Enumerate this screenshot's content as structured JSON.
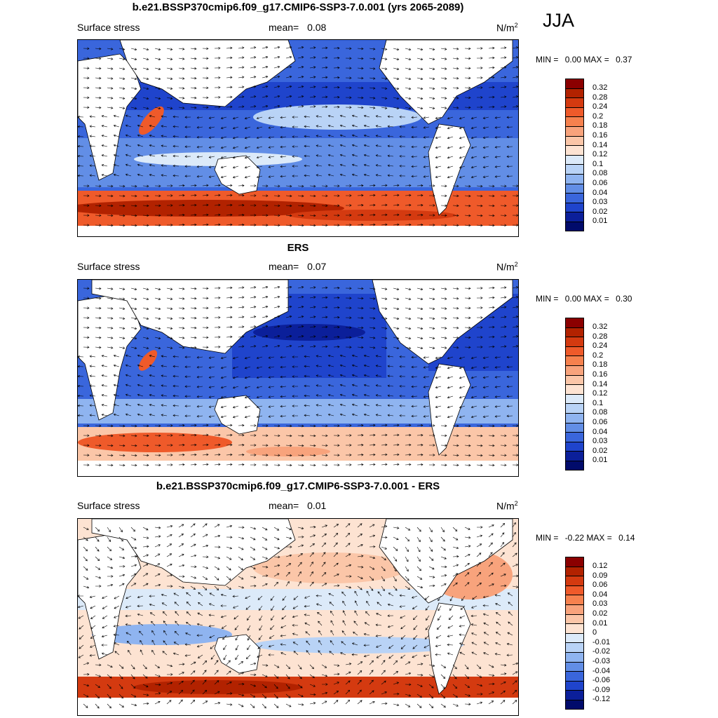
{
  "season_label": "JJA",
  "units": "N/m",
  "units_sup": "2",
  "field_label": "Surface stress",
  "panels": [
    {
      "title": "b.e21.BSSP370cmip6.f09_g17.CMIP6-SSP3-7.0.001 (yrs 2065-2089)",
      "mean_label": "mean=",
      "mean_value": "0.08",
      "min_label": "MIN =",
      "min_value": "0.00",
      "max_label": "MAX =",
      "max_value": "0.37",
      "colorbar_ticks": [
        "0.32",
        "0.28",
        "0.24",
        "0.2",
        "0.18",
        "0.16",
        "0.14",
        "0.12",
        "0.1",
        "0.08",
        "0.06",
        "0.04",
        "0.03",
        "0.02",
        "0.01"
      ],
      "colorbar_colors": [
        "#8b0000",
        "#b22200",
        "#d43a10",
        "#ef5a2a",
        "#f6814e",
        "#f8a37c",
        "#fbc6a8",
        "#fde3d2",
        "#dceaf9",
        "#b9d3f6",
        "#8fb4f0",
        "#628ee6",
        "#3a66dc",
        "#1f44cc",
        "#0b1f9a",
        "#010b6b"
      ]
    },
    {
      "title": "ERS",
      "mean_label": "mean=",
      "mean_value": "0.07",
      "min_label": "MIN =",
      "min_value": "0.00",
      "max_label": "MAX =",
      "max_value": "0.30",
      "colorbar_ticks": [
        "0.32",
        "0.28",
        "0.24",
        "0.2",
        "0.18",
        "0.16",
        "0.14",
        "0.12",
        "0.1",
        "0.08",
        "0.06",
        "0.04",
        "0.03",
        "0.02",
        "0.01"
      ],
      "colorbar_colors": [
        "#8b0000",
        "#b22200",
        "#d43a10",
        "#ef5a2a",
        "#f6814e",
        "#f8a37c",
        "#fbc6a8",
        "#fde3d2",
        "#dceaf9",
        "#b9d3f6",
        "#8fb4f0",
        "#628ee6",
        "#3a66dc",
        "#1f44cc",
        "#0b1f9a",
        "#010b6b"
      ]
    },
    {
      "title": "b.e21.BSSP370cmip6.f09_g17.CMIP6-SSP3-7.0.001 - ERS",
      "mean_label": "mean=",
      "mean_value": "0.01",
      "min_label": "MIN =",
      "min_value": "-0.22",
      "max_label": "MAX =",
      "max_value": "0.14",
      "colorbar_ticks": [
        "0.12",
        "0.09",
        "0.06",
        "0.04",
        "0.03",
        "0.02",
        "0.01",
        "0",
        "-0.01",
        "-0.02",
        "-0.03",
        "-0.04",
        "-0.06",
        "-0.09",
        "-0.12"
      ],
      "colorbar_colors": [
        "#8b0000",
        "#b22200",
        "#d43a10",
        "#ef5a2a",
        "#f6814e",
        "#f8a37c",
        "#fbc6a8",
        "#fde3d2",
        "#dceaf9",
        "#b9d3f6",
        "#8fb4f0",
        "#628ee6",
        "#3a66dc",
        "#1f44cc",
        "#0b1f9a",
        "#010b6b"
      ]
    }
  ]
}
